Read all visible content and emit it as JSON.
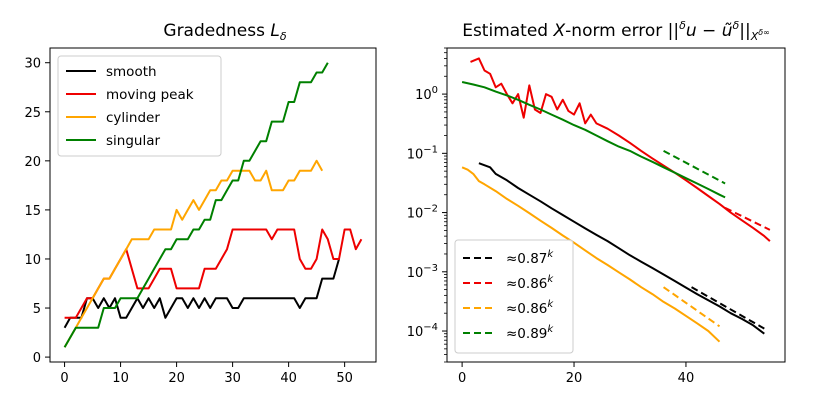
{
  "chart_data": [
    {
      "type": "line",
      "title": "Gradedness L_δ",
      "title_main": "Gradedness ",
      "title_var": "L",
      "title_sub": "δ",
      "xlabel": "",
      "ylabel": "",
      "xlim": [
        -2.6,
        55.6
      ],
      "ylim": [
        -0.5,
        31.5
      ],
      "xticks": [
        0,
        10,
        20,
        30,
        40,
        50
      ],
      "yticks": [
        0,
        5,
        10,
        15,
        20,
        25,
        30
      ],
      "xtick_labels": [
        "0",
        "10",
        "20",
        "30",
        "40",
        "50"
      ],
      "ytick_labels": [
        "0",
        "5",
        "10",
        "15",
        "20",
        "25",
        "30"
      ],
      "legend_position": "top-left",
      "series": [
        {
          "name": "smooth",
          "color": "#000000",
          "x": [
            0,
            1,
            2,
            3,
            4,
            5,
            6,
            7,
            8,
            9,
            10,
            11,
            12,
            13,
            14,
            15,
            16,
            17,
            18,
            19,
            20,
            21,
            22,
            23,
            24,
            25,
            26,
            27,
            28,
            29,
            30,
            31,
            32,
            33,
            34,
            35,
            36,
            37,
            38,
            39,
            40,
            41,
            42,
            43,
            44,
            45,
            46,
            47,
            48,
            49
          ],
          "y": [
            3,
            4,
            4,
            4,
            6,
            6,
            5,
            6,
            5,
            6,
            4,
            4,
            5,
            6,
            5,
            6,
            5,
            6,
            4,
            5,
            6,
            6,
            5,
            6,
            5,
            6,
            5,
            6,
            6,
            6,
            5,
            5,
            6,
            6,
            6,
            6,
            6,
            6,
            6,
            6,
            6,
            6,
            5,
            6,
            6,
            6,
            8,
            8,
            8,
            10
          ]
        },
        {
          "name": "moving peak",
          "color": "#ee0000",
          "x": [
            0,
            1,
            2,
            3,
            4,
            5,
            6,
            7,
            8,
            9,
            10,
            11,
            12,
            13,
            14,
            15,
            16,
            17,
            18,
            19,
            20,
            21,
            22,
            23,
            24,
            25,
            26,
            27,
            28,
            29,
            30,
            31,
            32,
            33,
            34,
            35,
            36,
            37,
            38,
            39,
            40,
            41,
            42,
            43,
            44,
            45,
            46,
            47,
            48,
            49,
            50,
            51,
            52,
            53
          ],
          "y": [
            4,
            4,
            4,
            5,
            6,
            6,
            7,
            8,
            8,
            9,
            10,
            11,
            9,
            7,
            7,
            7,
            8,
            9,
            9,
            9,
            7,
            7,
            7,
            7,
            7,
            9,
            9,
            9,
            10,
            11,
            13,
            13,
            13,
            13,
            13,
            13,
            13,
            12,
            13,
            13,
            13,
            13,
            10,
            9,
            9,
            10,
            13,
            12,
            10,
            10,
            13,
            13,
            11,
            12
          ]
        },
        {
          "name": "cylinder",
          "color": "#ffa500",
          "x": [
            0,
            1,
            2,
            3,
            4,
            5,
            6,
            7,
            8,
            9,
            10,
            11,
            12,
            13,
            14,
            15,
            16,
            17,
            18,
            19,
            20,
            21,
            22,
            23,
            24,
            25,
            26,
            27,
            28,
            29,
            30,
            31,
            32,
            33,
            34,
            35,
            36,
            37,
            38,
            39,
            40,
            41,
            42,
            43,
            44,
            45,
            46
          ],
          "y": [
            1,
            2,
            3,
            4,
            5,
            6,
            7,
            8,
            8,
            9,
            10,
            11,
            12,
            12,
            12,
            12,
            13,
            13,
            13,
            13,
            15,
            14,
            15,
            16,
            15,
            16,
            17,
            17,
            18,
            18,
            19,
            19,
            19,
            19,
            18,
            18,
            19,
            17,
            17,
            17,
            18,
            18,
            19,
            19,
            19,
            20,
            19
          ]
        },
        {
          "name": "singular",
          "color": "#008000",
          "x": [
            0,
            1,
            2,
            3,
            4,
            5,
            6,
            7,
            8,
            9,
            10,
            11,
            12,
            13,
            14,
            15,
            16,
            17,
            18,
            19,
            20,
            21,
            22,
            23,
            24,
            25,
            26,
            27,
            28,
            29,
            30,
            31,
            32,
            33,
            34,
            35,
            36,
            37,
            38,
            39,
            40,
            41,
            42,
            43,
            44,
            45,
            46,
            47
          ],
          "y": [
            1,
            2,
            3,
            3,
            3,
            3,
            3,
            5,
            5,
            5,
            6,
            6,
            6,
            6,
            7,
            8,
            9,
            10,
            11,
            11,
            12,
            12,
            12,
            13,
            13,
            14,
            14,
            16,
            16,
            17,
            18,
            18,
            20,
            20,
            21,
            22,
            22,
            24,
            24,
            24,
            26,
            26,
            28,
            28,
            28,
            29,
            29,
            30
          ]
        }
      ]
    },
    {
      "type": "line",
      "title": "Estimated X-norm error ||^δu − ũ^δ||_{X^{δ∞}}",
      "title_main": "Estimated ",
      "title_var": "X",
      "title_rest": "-norm error ||",
      "title_sup": "δ",
      "title_u": "u − ũ",
      "title_sup2": "δ",
      "title_bars": "||",
      "title_sub": "X",
      "title_subsup": "δ∞",
      "yscale": "log",
      "xlim": [
        -2.7,
        57.7
      ],
      "ylim": [
        3e-05,
        6
      ],
      "xticks": [
        0,
        20,
        40
      ],
      "xtick_labels": [
        "0",
        "20",
        "40"
      ],
      "yticks": [
        0.0001,
        0.001,
        0.01,
        0.1,
        1
      ],
      "ytick_mantissa": [
        "10",
        "10",
        "10",
        "10",
        "10"
      ],
      "ytick_exponent": [
        "−4",
        "−3",
        "−2",
        "−1",
        "0"
      ],
      "legend_position": "bottom-left",
      "series": [
        {
          "name": "smooth",
          "color": "#000000",
          "x": [
            3,
            5,
            6,
            8,
            10,
            12,
            14,
            16,
            18,
            20,
            22,
            24,
            26,
            28,
            30,
            32,
            34,
            36,
            38,
            40,
            42,
            44,
            46,
            48,
            50,
            52,
            54
          ],
          "y": [
            0.068,
            0.058,
            0.045,
            0.035,
            0.026,
            0.02,
            0.0155,
            0.0118,
            0.0091,
            0.007,
            0.0054,
            0.0042,
            0.0033,
            0.0025,
            0.0019,
            0.00148,
            0.00116,
            0.0009,
            0.0007,
            0.00054,
            0.00042,
            0.00033,
            0.00026,
            0.0002,
            0.00016,
            0.000125,
            9e-05
          ]
        },
        {
          "name": "moving peak",
          "color": "#ee0000",
          "x": [
            1.5,
            3,
            4,
            5,
            6,
            7,
            8,
            9,
            10,
            11,
            12,
            13,
            14,
            15,
            16,
            17,
            18,
            19,
            20,
            21,
            22,
            23,
            24,
            26,
            28,
            30,
            32,
            34,
            36,
            38,
            40,
            42,
            44,
            46,
            48,
            50,
            52,
            54,
            55
          ],
          "y": [
            3.5,
            4.0,
            2.5,
            2.2,
            1.3,
            1.5,
            1.0,
            0.7,
            1.0,
            0.4,
            1.4,
            0.55,
            0.48,
            1.0,
            0.9,
            0.55,
            0.8,
            0.52,
            0.45,
            0.7,
            0.32,
            0.45,
            0.32,
            0.26,
            0.2,
            0.15,
            0.11,
            0.082,
            0.062,
            0.047,
            0.035,
            0.026,
            0.019,
            0.014,
            0.01,
            0.0074,
            0.0055,
            0.004,
            0.0033
          ]
        },
        {
          "name": "cylinder",
          "color": "#ffa500",
          "x": [
            0,
            1,
            2,
            3,
            4,
            6,
            8,
            10,
            12,
            14,
            16,
            18,
            20,
            22,
            24,
            26,
            28,
            30,
            32,
            34,
            36,
            38,
            40,
            42,
            44,
            46
          ],
          "y": [
            0.058,
            0.053,
            0.045,
            0.034,
            0.03,
            0.023,
            0.017,
            0.013,
            0.0098,
            0.0073,
            0.0055,
            0.0041,
            0.0031,
            0.0023,
            0.0017,
            0.0013,
            0.00098,
            0.00074,
            0.00055,
            0.00042,
            0.00031,
            0.00024,
            0.00018,
            0.000135,
            0.0001,
            6.6e-05
          ]
        },
        {
          "name": "singular",
          "color": "#008000",
          "x": [
            0,
            2,
            4,
            6,
            8,
            10,
            12,
            14,
            16,
            18,
            20,
            22,
            24,
            26,
            28,
            30,
            32,
            34,
            36,
            38,
            40,
            42,
            44,
            46,
            47
          ],
          "y": [
            1.6,
            1.45,
            1.3,
            1.1,
            0.95,
            0.8,
            0.66,
            0.55,
            0.45,
            0.37,
            0.3,
            0.25,
            0.2,
            0.16,
            0.13,
            0.11,
            0.088,
            0.072,
            0.058,
            0.047,
            0.038,
            0.031,
            0.025,
            0.02,
            0.018
          ]
        }
      ],
      "fits": [
        {
          "label_approx": "≈0.87",
          "label_exp": "k",
          "color": "#000000",
          "x": [
            41,
            54
          ],
          "y": [
            0.00055,
            0.00011
          ]
        },
        {
          "label_approx": "≈0.86",
          "label_exp": "k",
          "color": "#ee0000",
          "x": [
            47,
            55
          ],
          "y": [
            0.012,
            0.0051
          ]
        },
        {
          "label_approx": "≈0.86",
          "label_exp": "k",
          "color": "#ffa500",
          "x": [
            36,
            46
          ],
          "y": [
            0.00055,
            0.00012
          ]
        },
        {
          "label_approx": "≈0.89",
          "label_exp": "k",
          "color": "#008000",
          "x": [
            36,
            47
          ],
          "y": [
            0.11,
            0.031
          ]
        }
      ]
    }
  ]
}
